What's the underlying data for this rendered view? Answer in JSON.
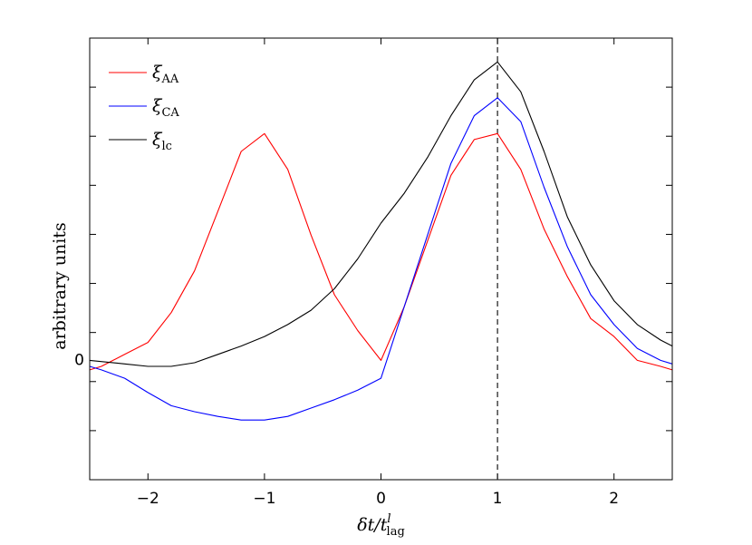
{
  "chart_data": {
    "type": "line",
    "xlabel": "δt/t",
    "xlabel_sup": "l",
    "xlabel_sub": "lag",
    "ylabel": "arbitrary units",
    "xlim": [
      -2.5,
      2.5
    ],
    "ylim": [
      -1.0,
      2.7
    ],
    "x_ticks": [
      -2,
      -1,
      0,
      1,
      2
    ],
    "x_tick_labels": [
      "−2",
      "−1",
      "0",
      "1",
      "2"
    ],
    "y_tick_label_zero": "0",
    "vline_x": 1,
    "legend_position": "top-left",
    "series": [
      {
        "name": "ξ",
        "name_sub": "AA",
        "color": "#ff0000",
        "x": [
          -2.5,
          -2.4,
          -2.3,
          -2.2,
          -2.0,
          -1.8,
          -1.6,
          -1.4,
          -1.2,
          -1.0,
          -0.8,
          -0.6,
          -0.4,
          -0.2,
          0.0,
          0.2,
          0.4,
          0.6,
          0.8,
          1.0,
          1.2,
          1.4,
          1.6,
          1.8,
          2.0,
          2.2,
          2.4,
          2.5
        ],
        "y": [
          -0.08,
          -0.05,
          0.0,
          0.05,
          0.15,
          0.4,
          0.75,
          1.25,
          1.75,
          1.9,
          1.6,
          1.05,
          0.55,
          0.25,
          0.0,
          0.45,
          1.0,
          1.55,
          1.85,
          1.9,
          1.6,
          1.1,
          0.7,
          0.35,
          0.2,
          0.0,
          -0.05,
          -0.08
        ]
      },
      {
        "name": "ξ",
        "name_sub": "CA",
        "color": "#0000ff",
        "x": [
          -2.5,
          -2.4,
          -2.2,
          -2.0,
          -1.8,
          -1.6,
          -1.4,
          -1.2,
          -1.0,
          -0.8,
          -0.6,
          -0.4,
          -0.2,
          0.0,
          0.2,
          0.4,
          0.6,
          0.8,
          1.0,
          1.2,
          1.4,
          1.6,
          1.8,
          2.0,
          2.2,
          2.4,
          2.5
        ],
        "y": [
          -0.05,
          -0.08,
          -0.15,
          -0.27,
          -0.38,
          -0.43,
          -0.47,
          -0.5,
          -0.5,
          -0.47,
          -0.4,
          -0.33,
          -0.25,
          -0.15,
          0.45,
          1.05,
          1.65,
          2.05,
          2.2,
          2.0,
          1.45,
          0.95,
          0.55,
          0.3,
          0.1,
          0.0,
          -0.03
        ]
      },
      {
        "name": "ξ",
        "name_sub": "lc",
        "color": "#000000",
        "x": [
          -2.5,
          -2.2,
          -2.0,
          -1.8,
          -1.6,
          -1.4,
          -1.2,
          -1.0,
          -0.8,
          -0.6,
          -0.4,
          -0.2,
          0.0,
          0.2,
          0.4,
          0.6,
          0.8,
          1.0,
          1.2,
          1.4,
          1.6,
          1.8,
          2.0,
          2.2,
          2.4,
          2.5
        ],
        "y": [
          0.0,
          -0.03,
          -0.05,
          -0.05,
          -0.02,
          0.05,
          0.12,
          0.2,
          0.3,
          0.42,
          0.6,
          0.85,
          1.15,
          1.4,
          1.7,
          2.05,
          2.35,
          2.5,
          2.25,
          1.75,
          1.2,
          0.8,
          0.5,
          0.3,
          0.17,
          0.12
        ]
      }
    ]
  }
}
